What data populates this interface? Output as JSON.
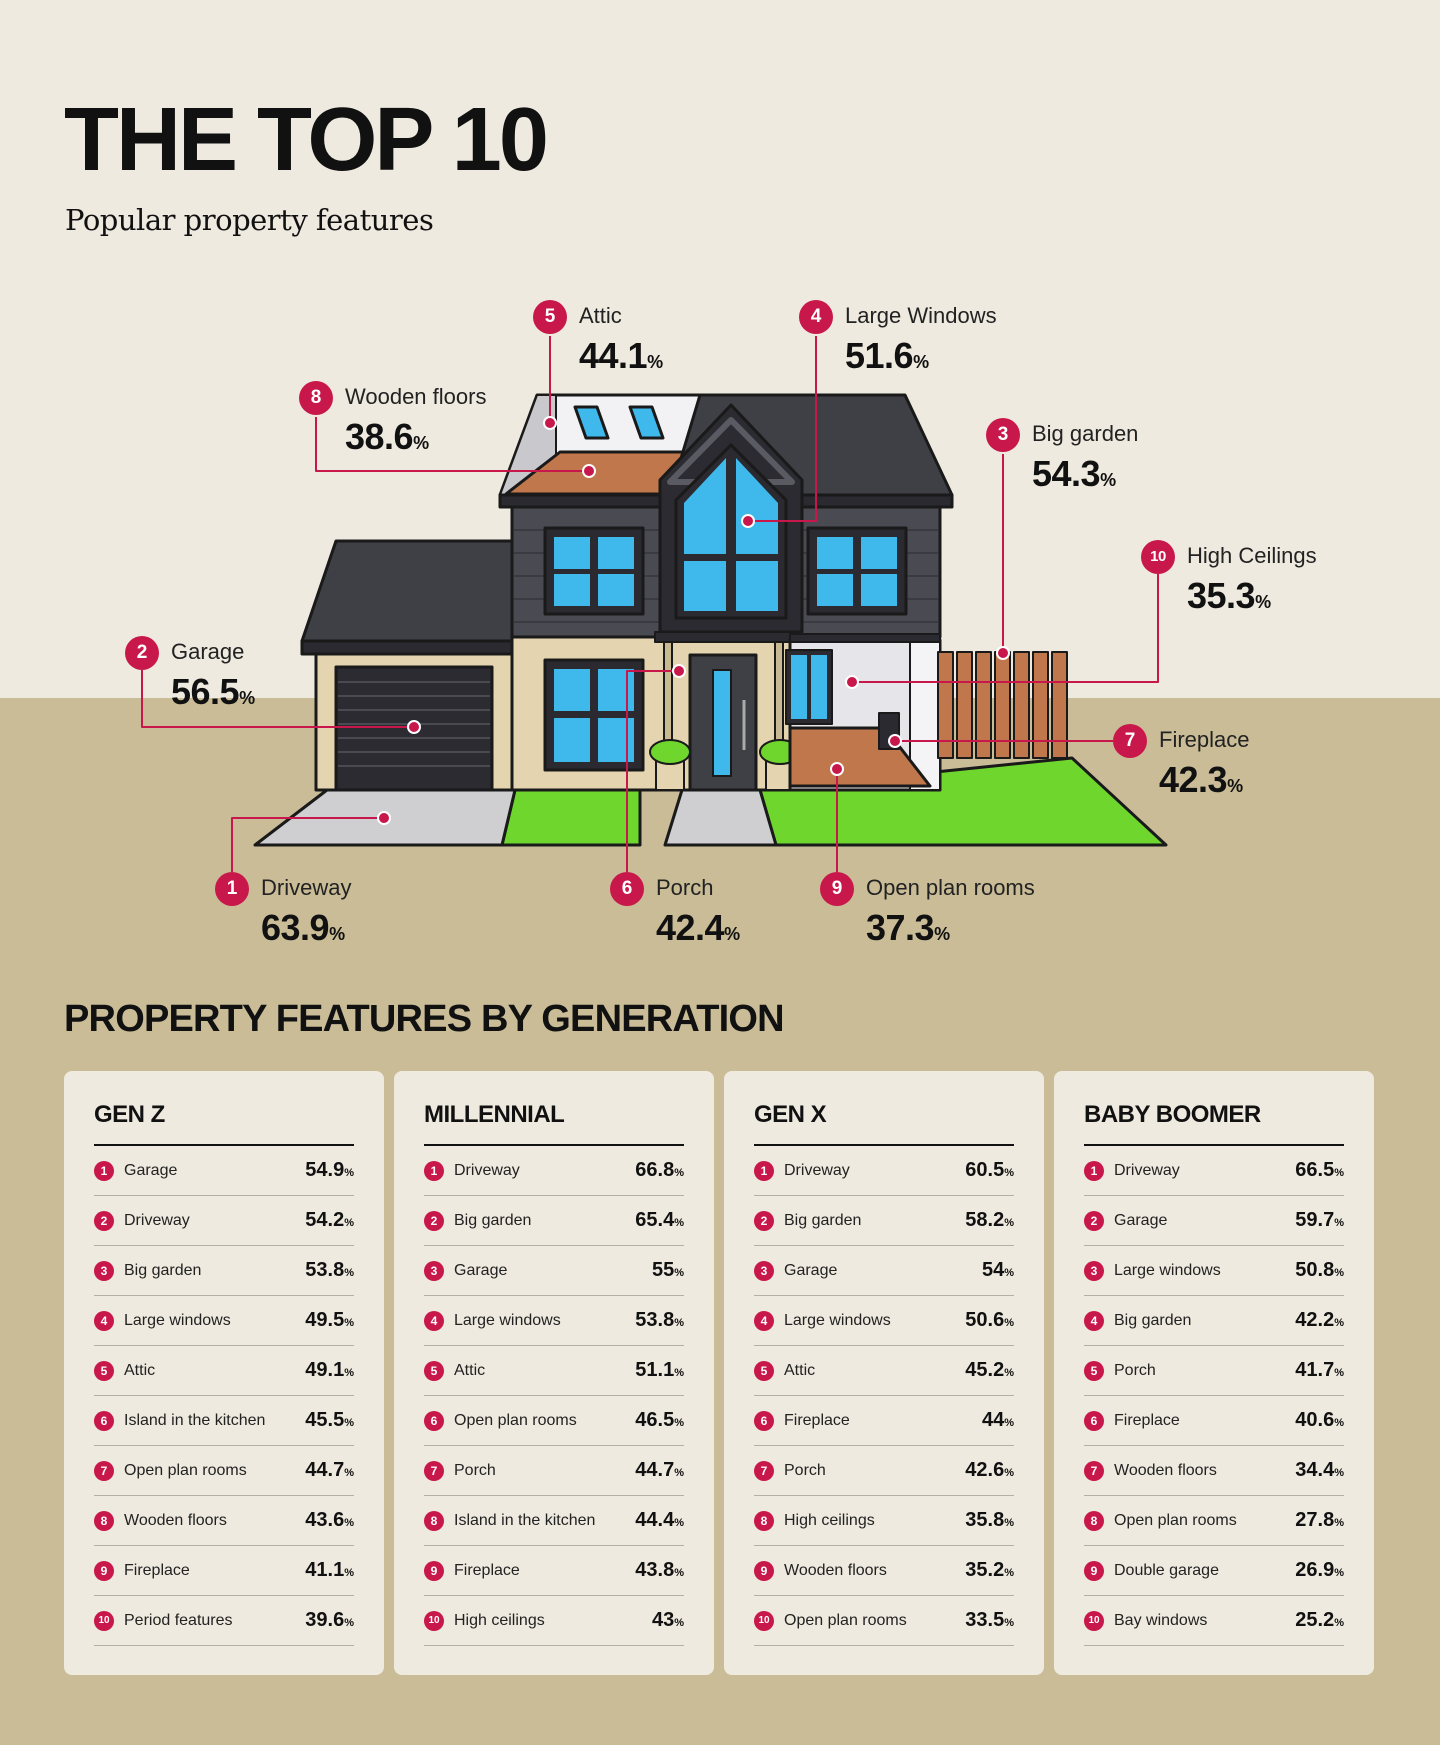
{
  "header": {
    "title": "THE TOP 10",
    "subtitle": "Popular property features"
  },
  "top10": [
    {
      "rank": "5",
      "label": "Attic",
      "value": "44.1",
      "unit": "%"
    },
    {
      "rank": "4",
      "label": "Large Windows",
      "value": "51.6",
      "unit": "%"
    },
    {
      "rank": "8",
      "label": "Wooden floors",
      "value": "38.6",
      "unit": "%"
    },
    {
      "rank": "3",
      "label": "Big garden",
      "value": "54.3",
      "unit": "%"
    },
    {
      "rank": "10",
      "label": "High Ceilings",
      "value": "35.3",
      "unit": "%"
    },
    {
      "rank": "2",
      "label": "Garage",
      "value": "56.5",
      "unit": "%"
    },
    {
      "rank": "7",
      "label": "Fireplace",
      "value": "42.3",
      "unit": "%"
    },
    {
      "rank": "1",
      "label": "Driveway",
      "value": "63.9",
      "unit": "%"
    },
    {
      "rank": "6",
      "label": "Porch",
      "value": "42.4",
      "unit": "%"
    },
    {
      "rank": "9",
      "label": "Open plan rooms",
      "value": "37.3",
      "unit": "%"
    }
  ],
  "generations": {
    "title": "PROPERTY FEATURES BY GENERATION",
    "unit": "%",
    "cards": [
      {
        "name": "GEN Z",
        "items": [
          {
            "rank": "1",
            "feature": "Garage",
            "value": "54.9"
          },
          {
            "rank": "2",
            "feature": "Driveway",
            "value": "54.2"
          },
          {
            "rank": "3",
            "feature": "Big garden",
            "value": "53.8"
          },
          {
            "rank": "4",
            "feature": "Large windows",
            "value": "49.5"
          },
          {
            "rank": "5",
            "feature": "Attic",
            "value": "49.1"
          },
          {
            "rank": "6",
            "feature": "Island in the kitchen",
            "value": "45.5"
          },
          {
            "rank": "7",
            "feature": "Open plan rooms",
            "value": "44.7"
          },
          {
            "rank": "8",
            "feature": "Wooden floors",
            "value": "43.6"
          },
          {
            "rank": "9",
            "feature": "Fireplace",
            "value": "41.1"
          },
          {
            "rank": "10",
            "feature": "Period features",
            "value": "39.6"
          }
        ]
      },
      {
        "name": "MILLENNIAL",
        "items": [
          {
            "rank": "1",
            "feature": "Driveway",
            "value": "66.8"
          },
          {
            "rank": "2",
            "feature": "Big garden",
            "value": "65.4"
          },
          {
            "rank": "3",
            "feature": "Garage",
            "value": "55"
          },
          {
            "rank": "4",
            "feature": "Large windows",
            "value": "53.8"
          },
          {
            "rank": "5",
            "feature": "Attic",
            "value": "51.1"
          },
          {
            "rank": "6",
            "feature": "Open plan rooms",
            "value": "46.5"
          },
          {
            "rank": "7",
            "feature": "Porch",
            "value": "44.7"
          },
          {
            "rank": "8",
            "feature": "Island in the kitchen",
            "value": "44.4"
          },
          {
            "rank": "9",
            "feature": "Fireplace",
            "value": "43.8"
          },
          {
            "rank": "10",
            "feature": "High ceilings",
            "value": "43"
          }
        ]
      },
      {
        "name": "GEN X",
        "items": [
          {
            "rank": "1",
            "feature": "Driveway",
            "value": "60.5"
          },
          {
            "rank": "2",
            "feature": "Big garden",
            "value": "58.2"
          },
          {
            "rank": "3",
            "feature": "Garage",
            "value": "54"
          },
          {
            "rank": "4",
            "feature": "Large windows",
            "value": "50.6"
          },
          {
            "rank": "5",
            "feature": "Attic",
            "value": "45.2"
          },
          {
            "rank": "6",
            "feature": "Fireplace",
            "value": "44"
          },
          {
            "rank": "7",
            "feature": "Porch",
            "value": "42.6"
          },
          {
            "rank": "8",
            "feature": "High ceilings",
            "value": "35.8"
          },
          {
            "rank": "9",
            "feature": "Wooden floors",
            "value": "35.2"
          },
          {
            "rank": "10",
            "feature": "Open plan rooms",
            "value": "33.5"
          }
        ]
      },
      {
        "name": "BABY BOOMER",
        "items": [
          {
            "rank": "1",
            "feature": "Driveway",
            "value": "66.5"
          },
          {
            "rank": "2",
            "feature": "Garage",
            "value": "59.7"
          },
          {
            "rank": "3",
            "feature": "Large windows",
            "value": "50.8"
          },
          {
            "rank": "4",
            "feature": "Big garden",
            "value": "42.2"
          },
          {
            "rank": "5",
            "feature": "Porch",
            "value": "41.7"
          },
          {
            "rank": "6",
            "feature": "Fireplace",
            "value": "40.6"
          },
          {
            "rank": "7",
            "feature": "Wooden floors",
            "value": "34.4"
          },
          {
            "rank": "8",
            "feature": "Open plan rooms",
            "value": "27.8"
          },
          {
            "rank": "9",
            "feature": "Double garage",
            "value": "26.9"
          },
          {
            "rank": "10",
            "feature": "Bay windows",
            "value": "25.2"
          }
        ]
      }
    ]
  },
  "colors": {
    "accent": "#c8174a",
    "background_top": "#efeadf",
    "background_ground": "#c9bc97",
    "card": "#efeadf",
    "roof": "#3f3f46",
    "siding": "#4a4a52",
    "window_glass": "#3fb8ec",
    "lawn": "#6fd62d",
    "wood": "#c0774b",
    "paving": "#cfcfd2"
  },
  "icons": {
    "house": "house-illustration",
    "marker": "hotspot-dot"
  }
}
